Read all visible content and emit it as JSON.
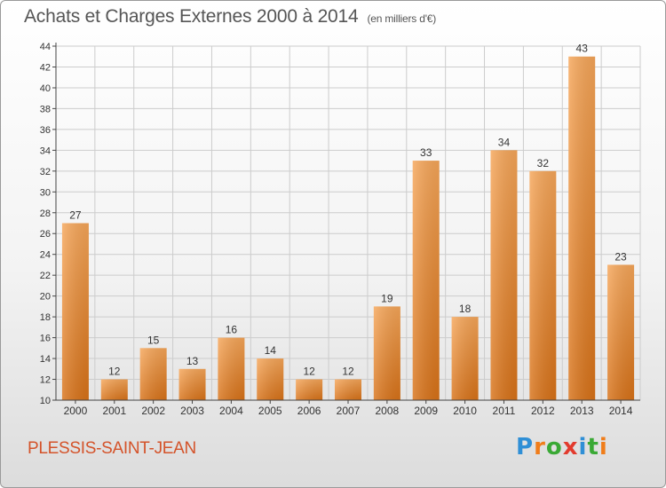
{
  "title": "Achats et Charges Externes 2000 à 2014",
  "unit": "(en milliers d'€)",
  "place": "PLESSIS-SAINT-JEAN",
  "logo": {
    "text": "Proxiti",
    "colors": [
      "#2f8fd6",
      "#f07d1a",
      "#3aa935",
      "#e23b2e",
      "#2f8fd6",
      "#3aa935",
      "#f07d1a"
    ]
  },
  "colors": {
    "bar_top": "#f6a659",
    "bar_bottom": "#d87218",
    "grid": "#cccccc",
    "axis": "#444444",
    "text": "#333333"
  },
  "chart_data": {
    "type": "bar",
    "categories": [
      "2000",
      "2001",
      "2002",
      "2003",
      "2004",
      "2005",
      "2006",
      "2007",
      "2008",
      "2009",
      "2010",
      "2011",
      "2012",
      "2013",
      "2014"
    ],
    "values": [
      27,
      12,
      15,
      13,
      16,
      14,
      12,
      12,
      19,
      33,
      18,
      34,
      32,
      43,
      23
    ],
    "ylim": [
      10,
      44
    ],
    "yticks": [
      10,
      12,
      14,
      16,
      18,
      20,
      22,
      24,
      26,
      28,
      30,
      32,
      34,
      36,
      38,
      40,
      42,
      44
    ],
    "grid": true,
    "title": "Achats et Charges Externes 2000 à 2014",
    "xlabel": "",
    "ylabel": ""
  }
}
